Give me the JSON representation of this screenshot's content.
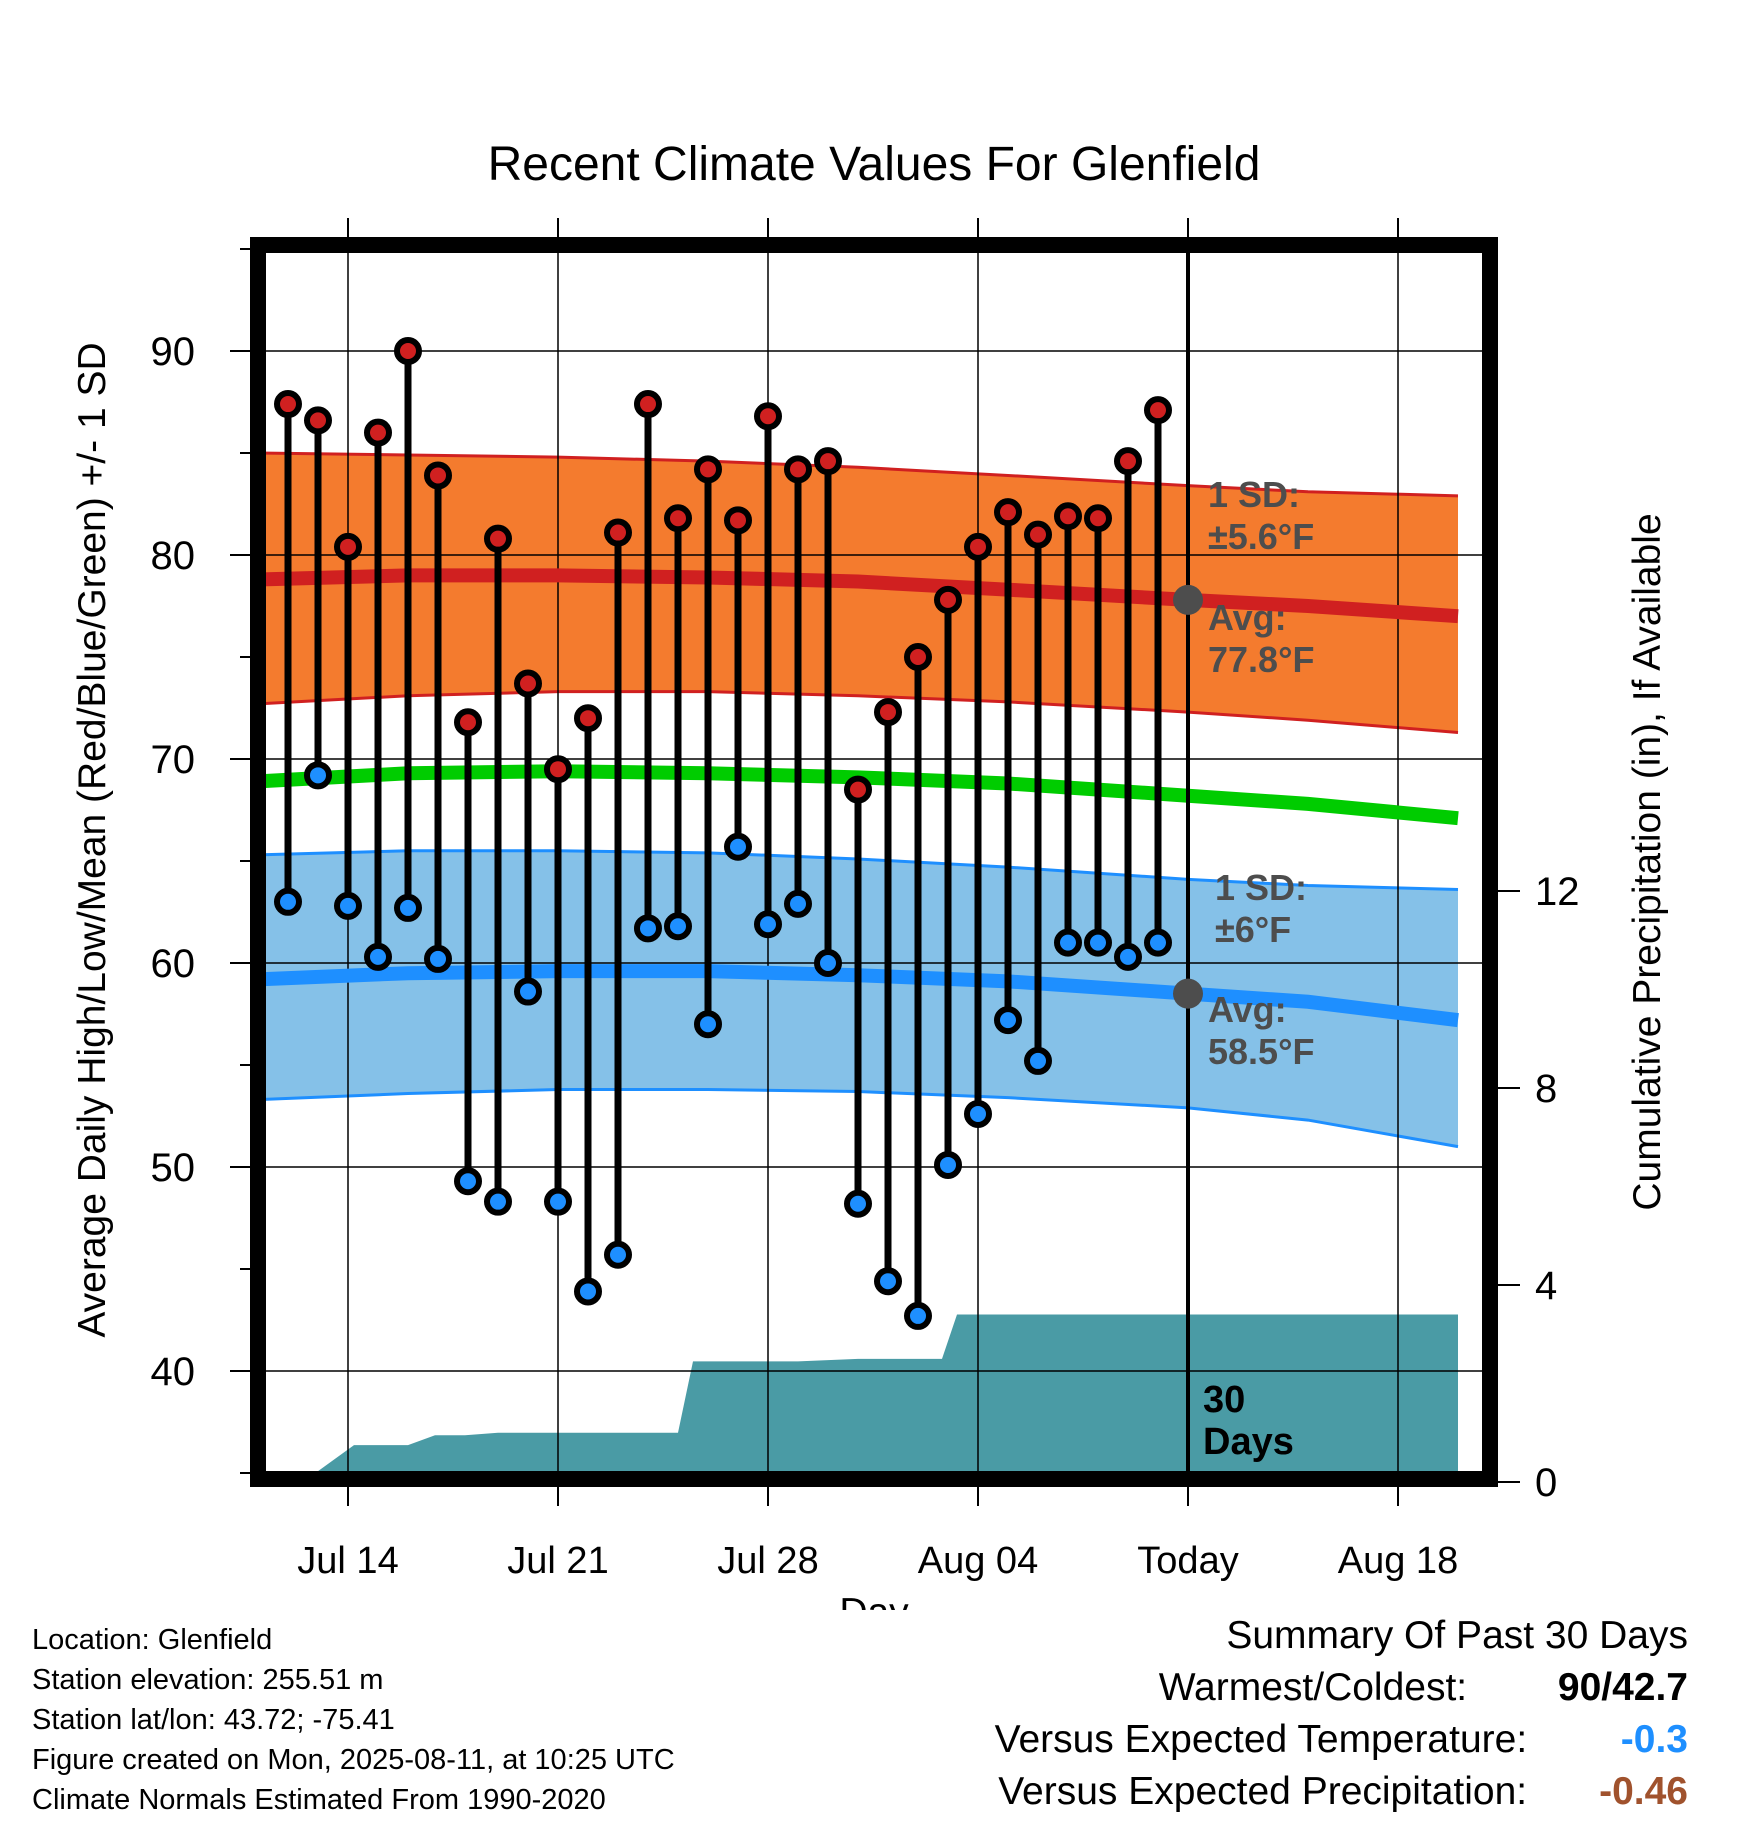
{
  "chart_data": {
    "type": "line",
    "title": "Recent Climate Values For Glenfield",
    "xlabel": "Day",
    "ylabel": "Average Daily High/Low/Mean (Red/Blue/Green) +/- 1 SD",
    "y2label": "Cumulative Precipitation (in), If Available",
    "ylim": [
      35,
      95
    ],
    "y2lim": [
      0,
      24
    ],
    "yticks": [
      "40",
      "50",
      "60",
      "70",
      "80",
      "90"
    ],
    "y2ticks": [
      "0",
      "4",
      "8",
      "12"
    ],
    "xticks": [
      "Jul 14",
      "Jul 21",
      "Jul 28",
      "Aug 04",
      "Today",
      "Aug 18"
    ],
    "xtick_day": [
      3,
      10,
      17,
      24,
      31,
      38
    ],
    "grid": true,
    "today_day": 31,
    "days_label": [
      "30",
      "Days"
    ],
    "highs": [
      87.4,
      86.6,
      80.4,
      86.0,
      90.0,
      83.9,
      71.8,
      80.8,
      73.7,
      69.5,
      72.0,
      81.1,
      87.4,
      81.8,
      84.2,
      81.7,
      86.8,
      84.2,
      84.6,
      68.5,
      72.3,
      75.0,
      77.8,
      80.4,
      82.1,
      81.0,
      81.9,
      81.8,
      84.6,
      87.1
    ],
    "lows": [
      63.0,
      69.2,
      62.8,
      60.3,
      62.7,
      60.2,
      49.3,
      48.3,
      58.6,
      48.3,
      43.9,
      45.7,
      61.7,
      61.8,
      57.0,
      65.7,
      61.9,
      62.9,
      60.0,
      48.2,
      44.4,
      42.7,
      50.1,
      52.6,
      57.2,
      55.2,
      61.0,
      61.0,
      60.3,
      61.0
    ],
    "normals": {
      "days": [
        0,
        5,
        10,
        15,
        20,
        25,
        31,
        35,
        40
      ],
      "high_mean": [
        78.8,
        79.0,
        79.0,
        78.9,
        78.7,
        78.3,
        77.8,
        77.5,
        77.0
      ],
      "high_sd_upper": [
        85.0,
        84.9,
        84.8,
        84.6,
        84.3,
        83.9,
        83.4,
        83.1,
        82.9
      ],
      "high_sd_lower": [
        72.7,
        73.1,
        73.3,
        73.3,
        73.1,
        72.8,
        72.3,
        71.9,
        71.3
      ],
      "mean": [
        68.9,
        69.3,
        69.4,
        69.3,
        69.1,
        68.8,
        68.2,
        67.8,
        67.1
      ],
      "low_mean": [
        59.2,
        59.5,
        59.6,
        59.6,
        59.4,
        59.1,
        58.5,
        58.1,
        57.2
      ],
      "low_sd_upper": [
        65.3,
        65.5,
        65.5,
        65.4,
        65.1,
        64.7,
        64.1,
        63.8,
        63.6
      ],
      "low_sd_lower": [
        53.3,
        53.6,
        53.8,
        53.8,
        53.7,
        53.4,
        52.9,
        52.3,
        51.0
      ]
    },
    "precip": {
      "days": [
        1.5,
        3.2,
        5.0,
        5.9,
        6.9,
        8.0,
        12.0,
        13.0,
        14.0,
        14.5,
        15.3,
        18.0,
        20.0,
        20.1,
        22.8,
        23.3,
        24.1,
        25.0,
        26.0,
        40.0
      ],
      "values": [
        0.0,
        0.75,
        0.75,
        0.95,
        0.95,
        1.0,
        1.0,
        1.0,
        1.0,
        2.45,
        2.45,
        2.45,
        2.5,
        2.5,
        2.5,
        3.4,
        3.4,
        3.4,
        3.4,
        3.4
      ]
    },
    "annotations": {
      "high_sd": [
        "1 SD:",
        "±5.6°F"
      ],
      "high_avg": [
        "Avg:",
        "77.8°F"
      ],
      "low_sd": [
        "1 SD:",
        "±6°F"
      ],
      "low_avg": [
        "Avg:",
        "58.5°F"
      ]
    },
    "colors": {
      "high_band": "#F47B2E",
      "high_line": "#D02020",
      "mean_line": "#00CC00",
      "low_band": "#85C1E8",
      "low_line": "#1E8FFF",
      "precip": "#4A9BA5",
      "high_marker": "#D02020",
      "low_marker": "#1E8FFF",
      "annotation": "#4D4D4D"
    }
  },
  "footer": {
    "location": "Location: Glenfield",
    "elevation": "Station elevation: 255.51 m",
    "latlon": "Station lat/lon: 43.72; -75.41",
    "created": "Figure created on Mon, 2025-08-11, at 10:25 UTC",
    "normals": "Climate Normals Estimated From 1990-2020"
  },
  "summary": {
    "title": "Summary Of Past 30 Days",
    "warmest_label": "Warmest/Coldest:",
    "warmest_value": "90/42.7",
    "temp_label": "Versus Expected Temperature:",
    "temp_value": "-0.3",
    "temp_color": "#1E8FFF",
    "precip_label": "Versus Expected Precipitation:",
    "precip_value": "-0.46",
    "precip_color": "#A0522D"
  }
}
